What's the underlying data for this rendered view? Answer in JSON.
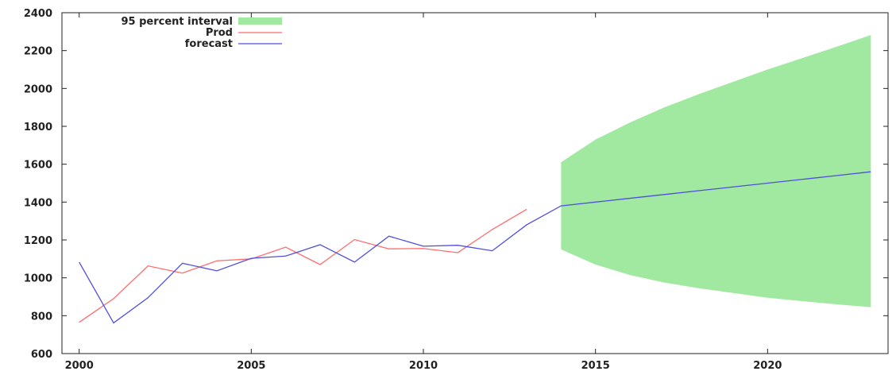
{
  "chart_data": {
    "type": "line",
    "title": "",
    "xlabel": "",
    "ylabel": "",
    "xlim": [
      1999.5,
      2023.5
    ],
    "ylim": [
      600,
      2400
    ],
    "x_ticks": [
      2000,
      2005,
      2010,
      2015,
      2020
    ],
    "y_ticks": [
      600,
      800,
      1000,
      1200,
      1400,
      1600,
      1800,
      2000,
      2200,
      2400
    ],
    "grid": false,
    "legend_position": "top-left",
    "legend": [
      {
        "label": "95 percent interval",
        "color": "#a1e8a1",
        "kind": "band"
      },
      {
        "label": "Prod",
        "color": "#ff6b6b",
        "kind": "line"
      },
      {
        "label": "forecast",
        "color": "#4f4fe0",
        "kind": "line"
      }
    ],
    "series": [
      {
        "name": "Prod",
        "color": "#ff6b6b",
        "x": [
          2000,
          2001,
          2002,
          2003,
          2004,
          2005,
          2006,
          2007,
          2008,
          2009,
          2010,
          2011,
          2012,
          2013
        ],
        "y": [
          765,
          890,
          1063,
          1025,
          1090,
          1100,
          1162,
          1070,
          1202,
          1153,
          1155,
          1133,
          1255,
          1362
        ]
      },
      {
        "name": "forecast",
        "color": "#4f4fe0",
        "x": [
          2000,
          2001,
          2002,
          2003,
          2004,
          2005,
          2006,
          2007,
          2008,
          2009,
          2010,
          2011,
          2012,
          2013,
          2014,
          2015,
          2016,
          2017,
          2018,
          2019,
          2020,
          2021,
          2022,
          2023
        ],
        "y": [
          1083,
          762,
          895,
          1077,
          1037,
          1103,
          1115,
          1175,
          1083,
          1220,
          1167,
          1172,
          1143,
          1280,
          1380,
          1400,
          1420,
          1440,
          1460,
          1480,
          1500,
          1520,
          1540,
          1560
        ]
      }
    ],
    "band": {
      "name": "95 percent interval",
      "color": "#a1e8a1",
      "x": [
        2014,
        2015,
        2016,
        2017,
        2018,
        2019,
        2020,
        2021,
        2022,
        2023
      ],
      "upper": [
        1610,
        1730,
        1820,
        1900,
        1970,
        2035,
        2100,
        2160,
        2220,
        2282
      ],
      "lower": [
        1150,
        1070,
        1015,
        975,
        945,
        920,
        895,
        877,
        860,
        845
      ]
    }
  }
}
